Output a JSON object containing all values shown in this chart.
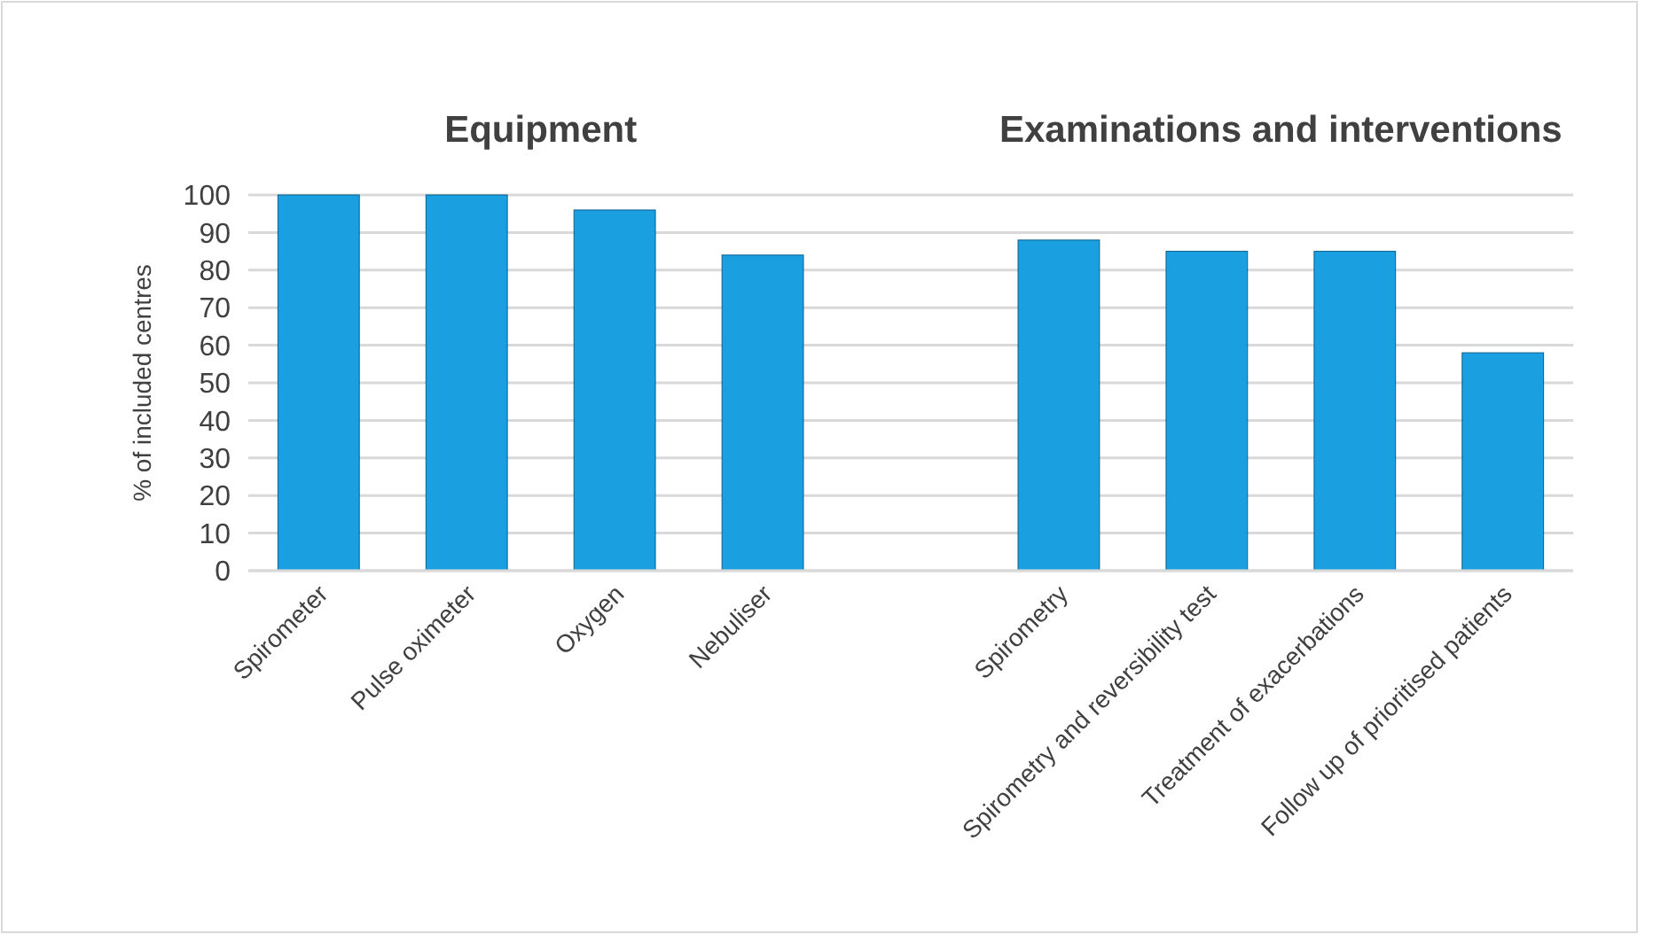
{
  "chart_data": {
    "type": "bar",
    "ylabel": "% of included centres",
    "categories": [
      "Spirometer",
      "Pulse oximeter",
      "Oxygen",
      "Nebuliser",
      null,
      "Spirometry",
      "Spirometry and reversibility test",
      "Treatment of exacerbations",
      "Follow up of prioritised patients"
    ],
    "values": [
      100,
      100,
      96,
      84,
      null,
      88,
      85,
      85,
      58
    ],
    "color": "#1a9fe0",
    "ylim": [
      0,
      100
    ],
    "yticks": [
      0,
      10,
      20,
      30,
      40,
      50,
      60,
      70,
      80,
      90,
      100
    ],
    "grid": "y",
    "annotations": [
      "Equipment",
      "Examinations and interventions"
    ]
  }
}
